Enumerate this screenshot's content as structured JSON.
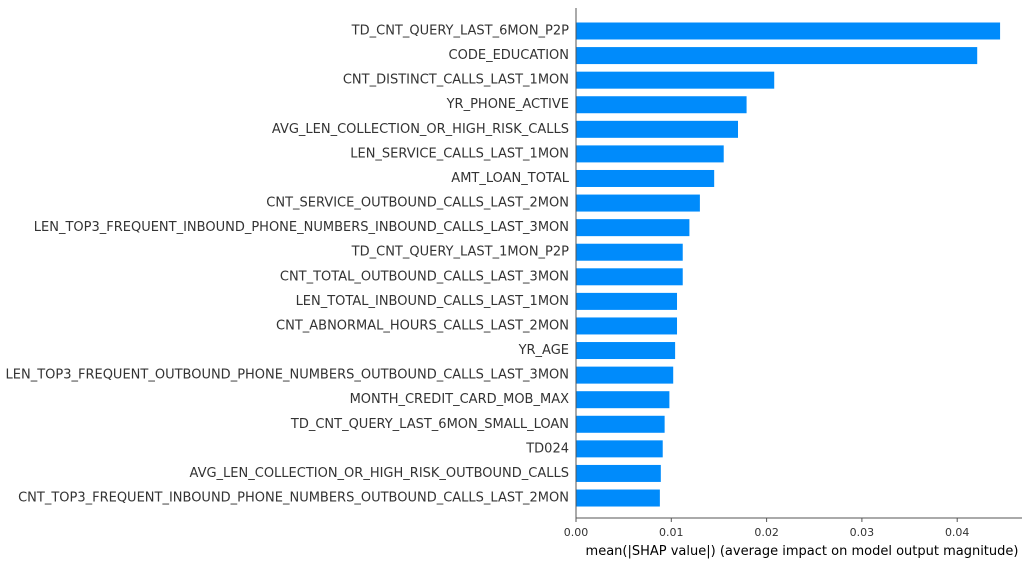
{
  "chart_data": {
    "type": "bar",
    "orientation": "horizontal",
    "categories": [
      "TD_CNT_QUERY_LAST_6MON_P2P",
      "CODE_EDUCATION",
      "CNT_DISTINCT_CALLS_LAST_1MON",
      "YR_PHONE_ACTIVE",
      "AVG_LEN_COLLECTION_OR_HIGH_RISK_CALLS",
      "LEN_SERVICE_CALLS_LAST_1MON",
      "AMT_LOAN_TOTAL",
      "CNT_SERVICE_OUTBOUND_CALLS_LAST_2MON",
      "LEN_TOP3_FREQUENT_INBOUND_PHONE_NUMBERS_INBOUND_CALLS_LAST_3MON",
      "TD_CNT_QUERY_LAST_1MON_P2P",
      "CNT_TOTAL_OUTBOUND_CALLS_LAST_3MON",
      "LEN_TOTAL_INBOUND_CALLS_LAST_1MON",
      "CNT_ABNORMAL_HOURS_CALLS_LAST_2MON",
      "YR_AGE",
      "LEN_TOP3_FREQUENT_OUTBOUND_PHONE_NUMBERS_OUTBOUND_CALLS_LAST_3MON",
      "MONTH_CREDIT_CARD_MOB_MAX",
      "TD_CNT_QUERY_LAST_6MON_SMALL_LOAN",
      "TD024",
      "AVG_LEN_COLLECTION_OR_HIGH_RISK_OUTBOUND_CALLS",
      "CNT_TOP3_FREQUENT_INBOUND_PHONE_NUMBERS_OUTBOUND_CALLS_LAST_2MON"
    ],
    "values": [
      0.0445,
      0.0421,
      0.0208,
      0.0179,
      0.017,
      0.0155,
      0.0145,
      0.013,
      0.0119,
      0.0112,
      0.0112,
      0.0106,
      0.0106,
      0.0104,
      0.0102,
      0.0098,
      0.0093,
      0.0091,
      0.0089,
      0.0088
    ],
    "xlabel": "mean(|SHAP value|) (average impact on model output magnitude)",
    "ylabel": "",
    "title": "",
    "xlim": [
      0,
      0.0468
    ],
    "xticks": [
      0.0,
      0.01,
      0.02,
      0.03,
      0.04
    ],
    "xtick_labels": [
      "0.00",
      "0.01",
      "0.02",
      "0.03",
      "0.04"
    ],
    "bar_color": "#008bfb",
    "grid": false,
    "legend": "none"
  }
}
